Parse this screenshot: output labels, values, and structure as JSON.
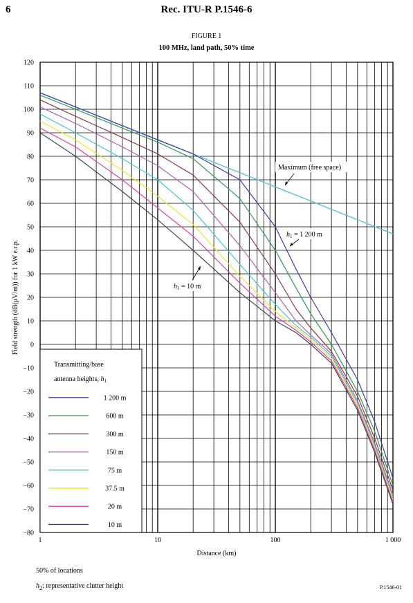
{
  "header": {
    "page_number": "6",
    "running_title": "Rec.  ITU-R  P.1546-6"
  },
  "figure": {
    "label": "FIGURE 1",
    "title": "100 MHz, land path, 50% time",
    "note_locations": "50% of locations",
    "note_clutter_sym": "h",
    "note_clutter_sub": "2",
    "note_clutter_text": ": representative clutter height",
    "code": "P.1546-01"
  },
  "chart_data": {
    "type": "line",
    "title": "100 MHz, land path, 50% time",
    "xlabel": "Distance (km)",
    "ylabel": "Field strength (dB(μV/m)) for 1 kW e.r.p.",
    "x_scale": "log",
    "xlim": [
      1,
      1000
    ],
    "ylim": [
      -80,
      120
    ],
    "x_ticks": [
      1,
      10,
      100,
      1000
    ],
    "x_tick_labels": [
      "1",
      "10",
      "100",
      "1 000"
    ],
    "y_ticks": [
      -80,
      -70,
      -60,
      -50,
      -40,
      -30,
      -20,
      -10,
      0,
      10,
      20,
      30,
      40,
      50,
      60,
      70,
      80,
      90,
      100,
      110,
      120
    ],
    "grid": true,
    "legend": {
      "title_line1": "Transmitting/base",
      "title_line2": "antenna heights, ",
      "title_sym": "h",
      "title_sub": "1",
      "placement": "bottom-left"
    },
    "annotations": {
      "free_space": "Maximum (free space)",
      "h1200_sym": "h",
      "h1200_sub": "1",
      "h1200_text": " = 1 200 m",
      "h10_sym": "h",
      "h10_sub": "1",
      "h10_text": " = 10 m"
    },
    "free_space": {
      "name": "Maximum (free space)",
      "color": "#5bc0d8",
      "x": [
        1,
        10,
        100,
        1000
      ],
      "y": [
        107,
        87,
        67,
        47
      ]
    },
    "series": [
      {
        "name": "1 200 m",
        "color": "#3a3aa8",
        "x": [
          1,
          2,
          5,
          10,
          20,
          50,
          100,
          150,
          200,
          300,
          500,
          700,
          1000
        ],
        "y": [
          107,
          101,
          93,
          87,
          81,
          70,
          50,
          32,
          20,
          5,
          -15,
          -33,
          -57
        ]
      },
      {
        "name": "600 m",
        "color": "#2e9a4a",
        "x": [
          1,
          2,
          5,
          10,
          20,
          50,
          100,
          150,
          200,
          300,
          500,
          700,
          1000
        ],
        "y": [
          106,
          100,
          92,
          86,
          79,
          62,
          40,
          24,
          13,
          0,
          -20,
          -37,
          -60
        ]
      },
      {
        "name": "300 m",
        "color": "#8b3a3a",
        "x": [
          1,
          2,
          5,
          10,
          20,
          50,
          100,
          150,
          200,
          300,
          500,
          700,
          1000
        ],
        "y": [
          104,
          97,
          88,
          81,
          72,
          52,
          30,
          15,
          7,
          -3,
          -22,
          -40,
          -62
        ]
      },
      {
        "name": "150 m",
        "color": "#b060b0",
        "x": [
          1,
          2,
          5,
          10,
          20,
          50,
          100,
          150,
          200,
          300,
          500,
          700,
          1000
        ],
        "y": [
          101,
          94,
          84,
          76,
          65,
          42,
          22,
          10,
          4,
          -4,
          -24,
          -42,
          -64
        ]
      },
      {
        "name": "75 m",
        "color": "#40c8d8",
        "x": [
          1,
          2,
          5,
          10,
          20,
          50,
          100,
          150,
          200,
          300,
          500,
          700,
          1000
        ],
        "y": [
          98,
          90,
          79,
          70,
          57,
          34,
          17,
          8,
          3,
          -5,
          -25,
          -43,
          -65
        ]
      },
      {
        "name": "37.5 m",
        "color": "#e8e830",
        "x": [
          1,
          2,
          5,
          10,
          20,
          50,
          100,
          150,
          200,
          300,
          500,
          700,
          1000
        ],
        "y": [
          95,
          87,
          74,
          63,
          51,
          29,
          14,
          7,
          2,
          -6,
          -26,
          -44,
          -66
        ]
      },
      {
        "name": "20 m",
        "color": "#e040a0",
        "x": [
          1,
          2,
          5,
          10,
          20,
          50,
          100,
          150,
          200,
          300,
          500,
          700,
          1000
        ],
        "y": [
          92,
          84,
          70,
          58,
          46,
          26,
          12,
          6,
          1,
          -7,
          -27,
          -45,
          -67
        ]
      },
      {
        "name": "10 m",
        "color": "#404060",
        "x": [
          1,
          2,
          5,
          10,
          20,
          50,
          100,
          150,
          200,
          300,
          500,
          700,
          1000
        ],
        "y": [
          90,
          80,
          65,
          53,
          40,
          22,
          10,
          5,
          0,
          -8,
          -28,
          -46,
          -68
        ]
      }
    ]
  }
}
